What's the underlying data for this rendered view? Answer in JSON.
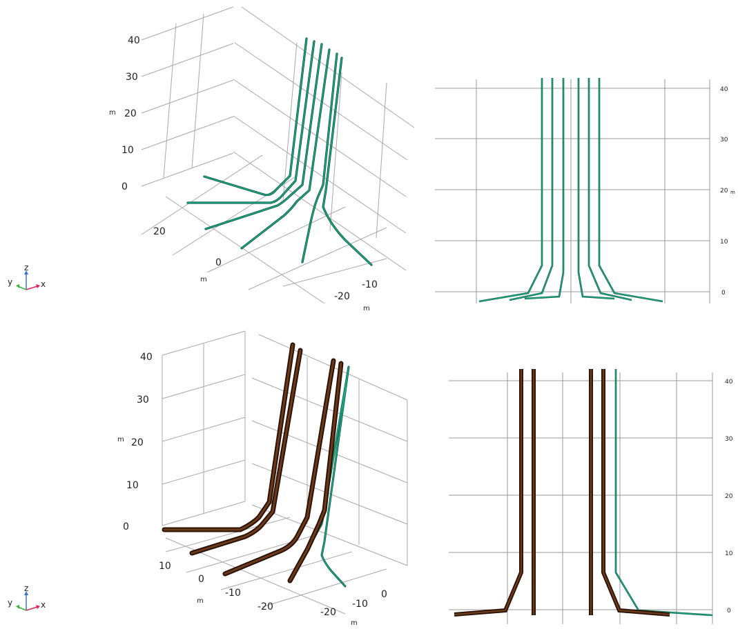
{
  "unit_label": "m",
  "colors": {
    "grid": "#a8a8a8",
    "pipe_green": "#1fb08a",
    "pipe_green_dark": "#0d5a47",
    "pipe_brown": "#5a2e12",
    "pipe_brown_dark": "#2b1206",
    "axis_x": "#e0245a",
    "axis_y": "#3ab53a",
    "axis_z": "#3a73d9"
  },
  "triad": {
    "x": "x",
    "y": "y",
    "z": "z"
  },
  "top_left": {
    "z_ticks": [
      "40",
      "30",
      "20",
      "10",
      "0"
    ],
    "y_ticks": [
      "20",
      "0"
    ],
    "y_ticks_2": [
      "-20"
    ],
    "x_ticks": [
      "-10",
      "-20"
    ]
  },
  "top_right": {
    "z_ticks": [
      "40",
      "30",
      "20",
      "10",
      "0"
    ]
  },
  "bottom_left": {
    "z_ticks": [
      "40",
      "30",
      "20",
      "10",
      "0"
    ],
    "y_ticks": [
      "10",
      "0",
      "-10",
      "-20"
    ],
    "x_ticks": [
      "0",
      "-10",
      "-20"
    ]
  },
  "bottom_right": {
    "z_ticks": [
      "40",
      "30",
      "20",
      "10",
      "0"
    ]
  }
}
